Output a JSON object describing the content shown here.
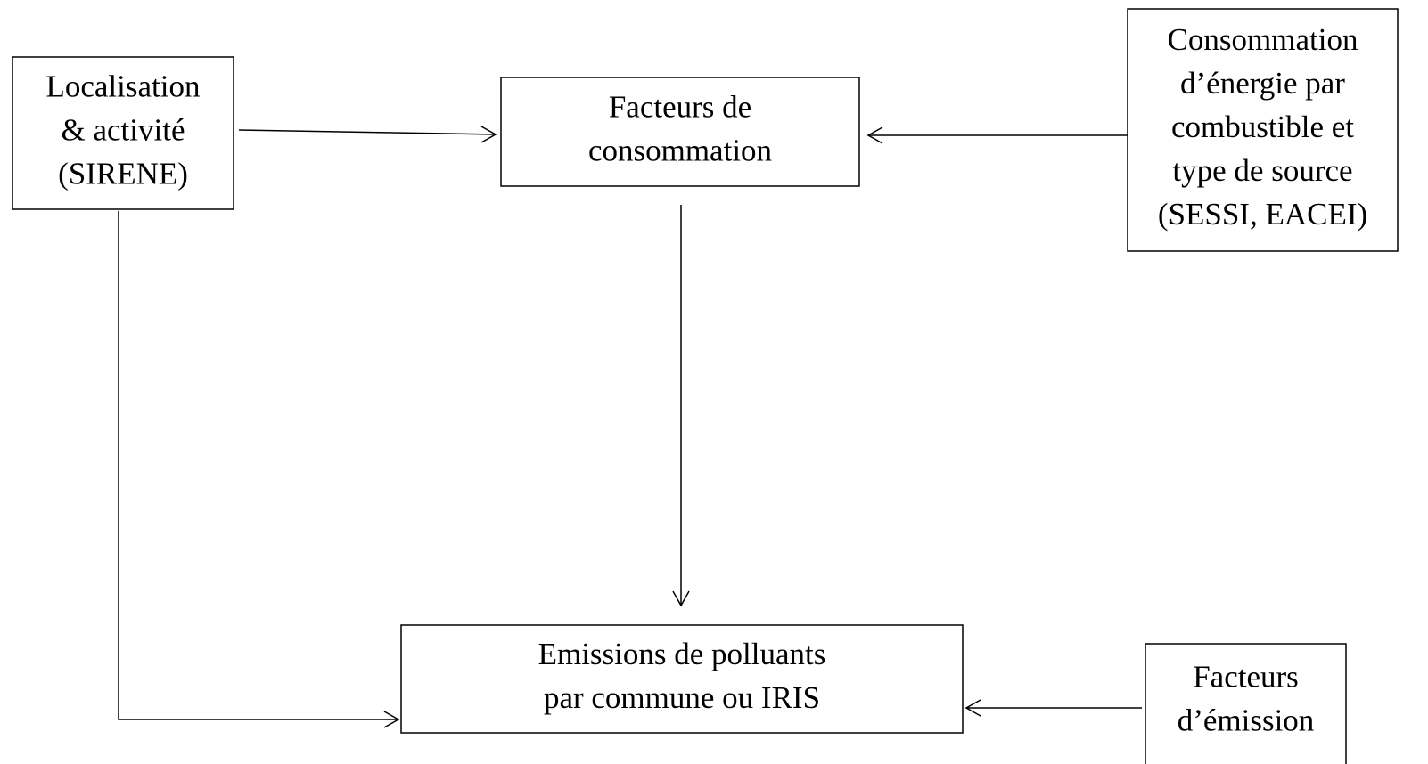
{
  "nodes": [
    {
      "lines": [
        "Localisation",
        "& activité",
        "(SIRENE)"
      ]
    },
    {
      "lines": [
        "Facteurs de",
        "consommation"
      ]
    },
    {
      "lines": [
        "Consommation",
        "d’énergie par",
        "combustible et",
        "type de source",
        "(SESSI, EACEI)"
      ]
    },
    {
      "lines": [
        "Emissions de polluants",
        "par commune ou IRIS"
      ]
    },
    {
      "lines": [
        "Facteurs",
        "d’émission"
      ]
    }
  ]
}
